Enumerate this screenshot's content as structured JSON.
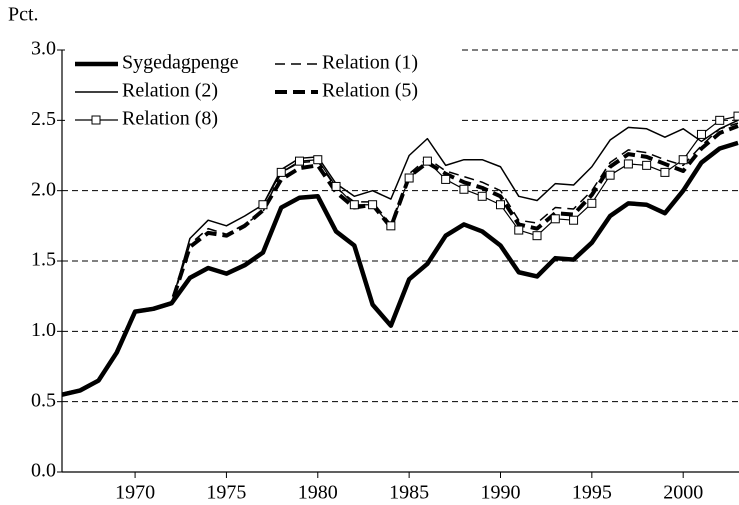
{
  "chart_data": {
    "type": "line",
    "y_label": "Pct.",
    "x": [
      1966,
      1967,
      1968,
      1969,
      1970,
      1971,
      1972,
      1973,
      1974,
      1975,
      1976,
      1977,
      1978,
      1979,
      1980,
      1981,
      1982,
      1983,
      1984,
      1985,
      1986,
      1987,
      1988,
      1989,
      1990,
      1991,
      1992,
      1993,
      1994,
      1995,
      1996,
      1997,
      1998,
      1999,
      2000,
      2001,
      2002,
      2003
    ],
    "series": [
      {
        "name": "Sygedagpenge",
        "color": "#000000",
        "width": 4.5,
        "dashed": false,
        "marker": false,
        "values": [
          0.55,
          0.58,
          0.65,
          0.85,
          1.14,
          1.16,
          1.2,
          1.38,
          1.45,
          1.41,
          1.47,
          1.56,
          1.88,
          1.95,
          1.96,
          1.71,
          1.61,
          1.19,
          1.04,
          1.37,
          1.48,
          1.68,
          1.76,
          1.71,
          1.61,
          1.42,
          1.39,
          1.52,
          1.51,
          1.63,
          1.82,
          1.91,
          1.9,
          1.84,
          2.0,
          2.2,
          2.3,
          2.34
        ]
      },
      {
        "name": "Relation (1)",
        "color": "#000000",
        "width": 1.5,
        "dashed": true,
        "marker": false,
        "values": [
          0.55,
          0.58,
          0.65,
          0.85,
          1.14,
          1.16,
          1.2,
          1.62,
          1.73,
          1.69,
          1.76,
          1.85,
          2.13,
          2.2,
          2.21,
          2.02,
          1.92,
          1.92,
          1.76,
          2.12,
          2.23,
          2.14,
          2.1,
          2.06,
          2.0,
          1.79,
          1.77,
          1.88,
          1.87,
          2.0,
          2.2,
          2.29,
          2.27,
          2.22,
          2.18,
          2.32,
          2.44,
          2.48
        ]
      },
      {
        "name": "Relation (2)",
        "color": "#000000",
        "width": 1.5,
        "dashed": false,
        "marker": false,
        "values": [
          0.55,
          0.58,
          0.65,
          0.85,
          1.14,
          1.16,
          1.2,
          1.66,
          1.79,
          1.75,
          1.82,
          1.9,
          2.15,
          2.23,
          2.24,
          2.05,
          1.96,
          2.0,
          1.94,
          2.25,
          2.37,
          2.18,
          2.22,
          2.22,
          2.17,
          1.96,
          1.93,
          2.05,
          2.04,
          2.17,
          2.36,
          2.45,
          2.44,
          2.38,
          2.44,
          2.35,
          2.44,
          2.5
        ]
      },
      {
        "name": "Relation (5)",
        "color": "#000000",
        "width": 4,
        "dashed": true,
        "marker": false,
        "values": [
          0.55,
          0.58,
          0.65,
          0.85,
          1.14,
          1.16,
          1.2,
          1.6,
          1.7,
          1.68,
          1.75,
          1.86,
          2.08,
          2.16,
          2.18,
          1.99,
          1.88,
          1.9,
          1.74,
          2.1,
          2.2,
          2.12,
          2.06,
          2.02,
          1.96,
          1.76,
          1.73,
          1.84,
          1.83,
          1.97,
          2.17,
          2.26,
          2.24,
          2.19,
          2.14,
          2.3,
          2.41,
          2.46
        ]
      },
      {
        "name": "Relation (8)",
        "color": "#000000",
        "width": 1.2,
        "dashed": false,
        "marker": true,
        "values": [
          null,
          null,
          null,
          null,
          null,
          null,
          null,
          null,
          null,
          null,
          null,
          1.9,
          2.13,
          2.21,
          2.22,
          2.03,
          1.9,
          1.9,
          1.75,
          2.09,
          2.21,
          2.08,
          2.01,
          1.96,
          1.9,
          1.72,
          1.68,
          1.8,
          1.79,
          1.91,
          2.11,
          2.19,
          2.18,
          2.13,
          2.22,
          2.4,
          2.5,
          2.53
        ]
      }
    ],
    "xlim": [
      1966,
      2003
    ],
    "xticks": [
      1970,
      1975,
      1980,
      1985,
      1990,
      1995,
      2000
    ],
    "ylim": [
      0,
      3
    ],
    "yticks": [
      {
        "value": 0,
        "label": "0.0"
      },
      {
        "value": 0.5,
        "label": "0.5"
      },
      {
        "value": 1,
        "label": "1.0"
      },
      {
        "value": 1.5,
        "label": "1.5"
      },
      {
        "value": 2,
        "label": "2.0"
      },
      {
        "value": 2.5,
        "label": "2.5"
      },
      {
        "value": 3,
        "label": "3.0"
      }
    ],
    "grid": true,
    "legend": "upper-left"
  }
}
